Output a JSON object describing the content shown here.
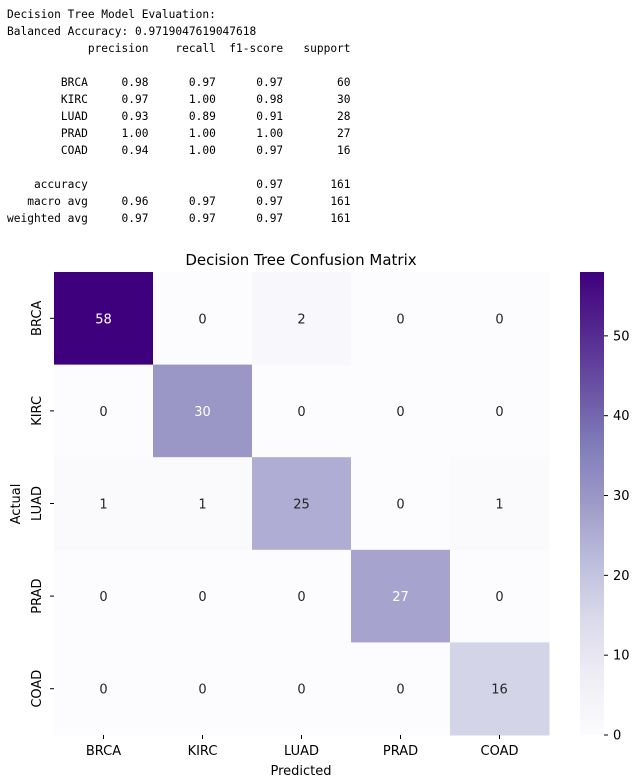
{
  "report": {
    "heading": "Decision Tree Model Evaluation:",
    "balanced_accuracy_label": "Balanced Accuracy:",
    "balanced_accuracy_value": "0.9719047619047618",
    "columns": [
      "precision",
      "recall",
      "f1-score",
      "support"
    ],
    "classes": [
      {
        "label": "BRCA",
        "precision": "0.98",
        "recall": "0.97",
        "f1": "0.97",
        "support": "60"
      },
      {
        "label": "KIRC",
        "precision": "0.97",
        "recall": "1.00",
        "f1": "0.98",
        "support": "30"
      },
      {
        "label": "LUAD",
        "precision": "0.93",
        "recall": "0.89",
        "f1": "0.91",
        "support": "28"
      },
      {
        "label": "PRAD",
        "precision": "1.00",
        "recall": "1.00",
        "f1": "1.00",
        "support": "27"
      },
      {
        "label": "COAD",
        "precision": "0.94",
        "recall": "1.00",
        "f1": "0.97",
        "support": "16"
      }
    ],
    "summary": [
      {
        "label": "accuracy",
        "precision": "",
        "recall": "",
        "f1": "0.97",
        "support": "161"
      },
      {
        "label": "macro avg",
        "precision": "0.96",
        "recall": "0.97",
        "f1": "0.97",
        "support": "161"
      },
      {
        "label": "weighted avg",
        "precision": "0.97",
        "recall": "0.97",
        "f1": "0.97",
        "support": "161"
      }
    ]
  },
  "chart_data": {
    "type": "heatmap",
    "title": "Decision Tree Confusion Matrix",
    "xlabel": "Predicted",
    "ylabel": "Actual",
    "x_categories": [
      "BRCA",
      "KIRC",
      "LUAD",
      "PRAD",
      "COAD"
    ],
    "y_categories": [
      "BRCA",
      "KIRC",
      "LUAD",
      "PRAD",
      "COAD"
    ],
    "values": [
      [
        58,
        0,
        2,
        0,
        0
      ],
      [
        0,
        30,
        0,
        0,
        0
      ],
      [
        1,
        1,
        25,
        0,
        1
      ],
      [
        0,
        0,
        0,
        27,
        0
      ],
      [
        0,
        0,
        0,
        0,
        16
      ]
    ],
    "colormap": "Purples",
    "vmin": 0,
    "vmax": 58,
    "colorbar_ticks": [
      0,
      10,
      20,
      30,
      40,
      50
    ],
    "colors": {
      "low": "#fcfbfd",
      "high": "#3f007d",
      "text_light": "#ffffff",
      "text_dark": "#262626"
    }
  }
}
